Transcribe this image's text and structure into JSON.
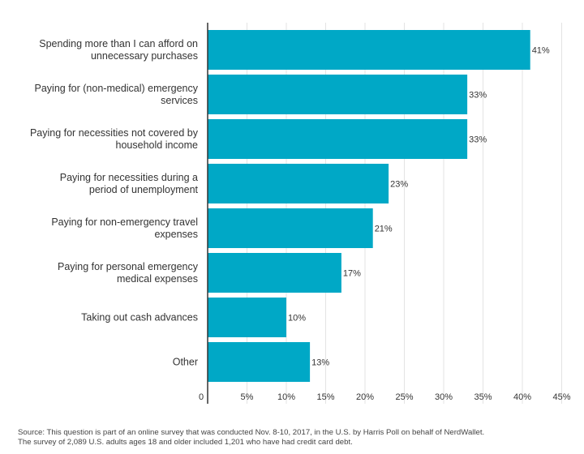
{
  "chart_data": {
    "type": "bar",
    "orientation": "horizontal",
    "categories": [
      [
        "Spending more than I can afford on",
        "unnecessary purchases"
      ],
      [
        "Paying for (non-medical) emergency",
        "services"
      ],
      [
        "Paying for necessities not covered by",
        "household income"
      ],
      [
        "Paying for necessities during a",
        "period of unemployment"
      ],
      [
        "Paying for non-emergency travel",
        "expenses"
      ],
      [
        "Paying for personal emergency",
        "medical expenses"
      ],
      [
        "Taking out cash advances"
      ],
      [
        "Other"
      ]
    ],
    "values": [
      41,
      33,
      33,
      23,
      21,
      17,
      10,
      13
    ],
    "value_labels": [
      "41%",
      "33%",
      "33%",
      "23%",
      "21%",
      "17%",
      "10%",
      "13%"
    ],
    "xlim": [
      0,
      45
    ],
    "x_ticks": [
      0,
      5,
      10,
      15,
      20,
      25,
      30,
      35,
      40,
      45
    ],
    "x_tick_labels": [
      "0",
      "5%",
      "10%",
      "15%",
      "20%",
      "25%",
      "30%",
      "35%",
      "40%",
      "45%"
    ],
    "xlabel": "",
    "ylabel": "",
    "title": "",
    "bar_color": "#00a8c6",
    "grid": true,
    "grid_color": "#e3e3e3",
    "axis_color": "#333333"
  },
  "source": {
    "line1": "Source: This question is part of an online survey that was conducted Nov. 8-10, 2017, in the U.S. by Harris Poll on behalf of NerdWallet.",
    "line2": "The survey of 2,089 U.S. adults ages 18 and older included 1,201 who have had credit card debt."
  }
}
